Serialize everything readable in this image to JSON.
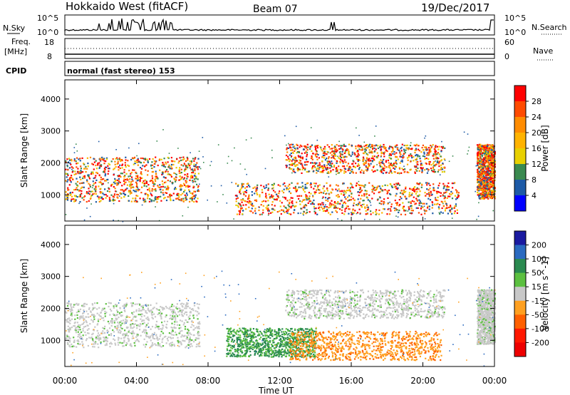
{
  "header": {
    "station": "Hokkaido West (fitACF)",
    "beam": "Beam 07",
    "date": "19/Dec/2017"
  },
  "strips": {
    "nsky_label": "N.Sky",
    "nsky_ticks": [
      "10^5",
      "10^0"
    ],
    "nsearch_label": "N.Search",
    "nsearch_ticks": [
      "10^5",
      "10^0"
    ],
    "freq_label": [
      "Freq.",
      "[MHz]"
    ],
    "freq_ticks": [
      "18",
      "8"
    ],
    "nave_label": "Nave",
    "nave_ticks": [
      "60",
      "0"
    ],
    "cpid_label": "CPID",
    "cpid_value": "normal (fast stereo) 153"
  },
  "chart_data": [
    {
      "type": "heatmap",
      "panel": "power",
      "ylabel": "Slant Range [km]",
      "xlabel": "",
      "ylim": [
        180,
        4600
      ],
      "yticks": [
        1000,
        2000,
        3000,
        4000
      ],
      "xlim": [
        0,
        24
      ],
      "xticks": [
        0,
        4,
        8,
        12,
        16,
        20,
        24
      ],
      "colorbar": {
        "label": "Power [dB]",
        "ticks": [
          "28",
          "24",
          "20",
          "16",
          "12",
          "8",
          "4"
        ],
        "colors": [
          "#ff0000",
          "#ff4b00",
          "#ff8c00",
          "#ffb300",
          "#e8d000",
          "#3a8a50",
          "#1d5aa6",
          "#0000ff"
        ]
      },
      "regions": [
        {
          "t": [
            0,
            7.5
          ],
          "range_km": [
            800,
            2200
          ],
          "peak_db": 28
        },
        {
          "t": [
            12.3,
            21.2
          ],
          "range_km": [
            1700,
            2600
          ],
          "peak_db": 28
        },
        {
          "t": [
            9.5,
            22.0
          ],
          "range_km": [
            400,
            1400
          ],
          "peak_db": 28
        },
        {
          "t": [
            23.0,
            24.0
          ],
          "range_km": [
            900,
            2600
          ],
          "peak_db": 28
        }
      ]
    },
    {
      "type": "heatmap",
      "panel": "velocity",
      "ylabel": "Slant Range [km]",
      "xlabel": "Time UT",
      "ylim": [
        180,
        4600
      ],
      "yticks": [
        1000,
        2000,
        3000,
        4000
      ],
      "xlim": [
        0,
        24
      ],
      "xticks": [
        0,
        4,
        8,
        12,
        16,
        20,
        24
      ],
      "colorbar": {
        "label": "Velocity [m s^-1]",
        "unit_superscript": "-1",
        "ticks": [
          "200",
          "100",
          "50",
          "15",
          "-15",
          "-50",
          "-100",
          "-200"
        ],
        "colors": [
          "#1a1aa0",
          "#2a6ac0",
          "#2a8a50",
          "#5cc040",
          "#c8c8c8",
          "#ffa020",
          "#ff6000",
          "#ff1800",
          "#ee0000"
        ]
      },
      "regions": [
        {
          "t": [
            0,
            7.5
          ],
          "range_km": [
            800,
            2200
          ],
          "velocity": "-15 to 15"
        },
        {
          "t": [
            12.3,
            21.2
          ],
          "range_km": [
            1700,
            2600
          ],
          "velocity": "-15 to 15"
        },
        {
          "t": [
            9.0,
            14.0
          ],
          "range_km": [
            500,
            1400
          ],
          "velocity": "50 to 100"
        },
        {
          "t": [
            12.5,
            21.0
          ],
          "range_km": [
            400,
            1300
          ],
          "velocity": "-50 to -100"
        },
        {
          "t": [
            23.0,
            24.0
          ],
          "range_km": [
            900,
            2600
          ],
          "velocity": "-15 to 15"
        }
      ]
    }
  ],
  "time_labels": [
    "00:00",
    "04:00",
    "08:00",
    "12:00",
    "16:00",
    "20:00",
    "00:00"
  ]
}
